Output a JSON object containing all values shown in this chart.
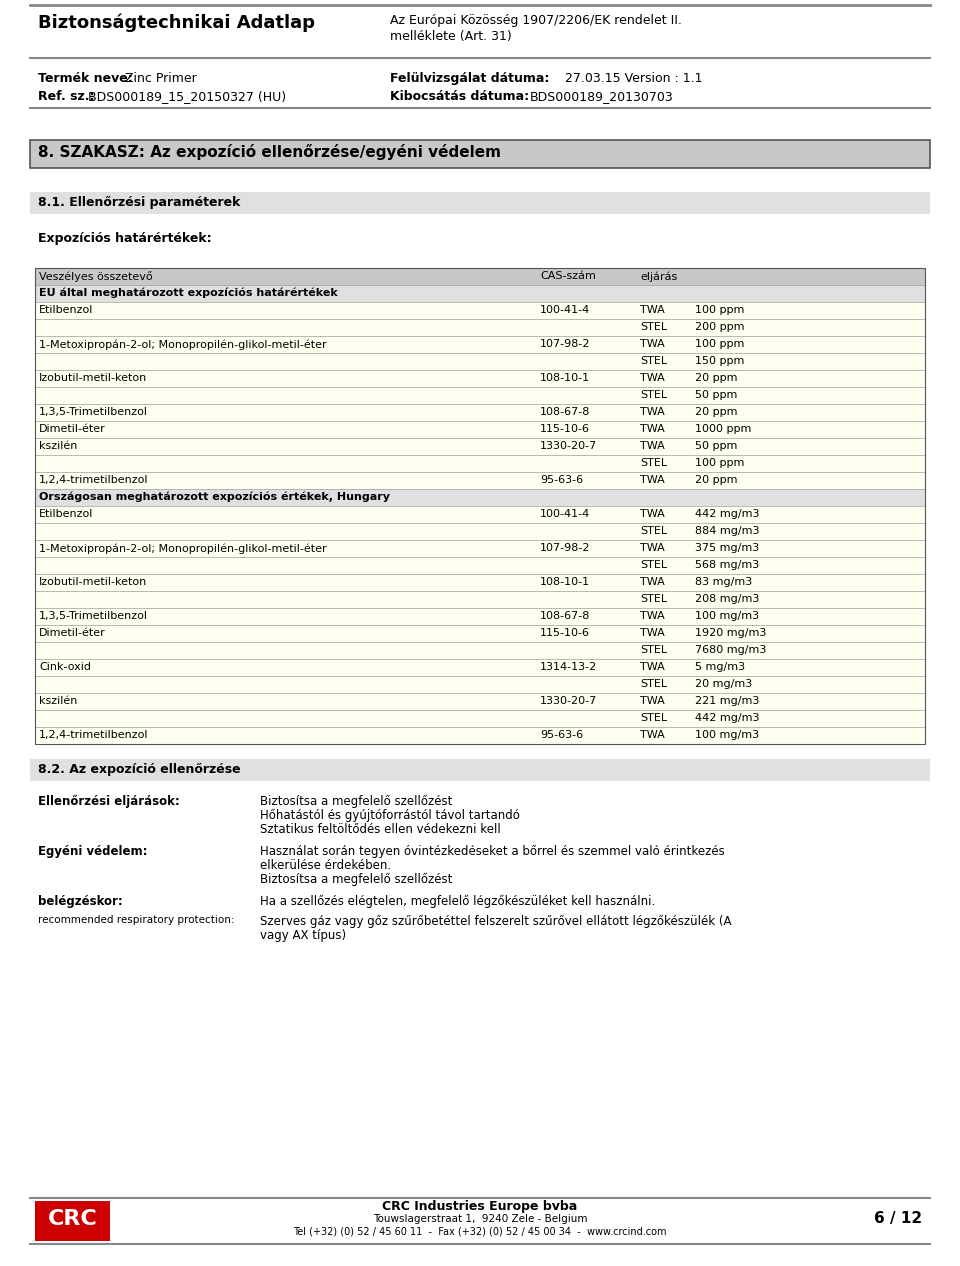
{
  "page_bg": "#ffffff",
  "header_title_left": "Biztonságtechnikai Adatlap",
  "header_right_line1": "Az Európai Közösség 1907/2206/EK rendelet II.",
  "header_right_line2": "melléklete (Art. 31)",
  "product_name_label": "Termék neve:",
  "product_name_value": "Zinc Primer",
  "ref_label": "Ref. sz.:",
  "ref_value": "BDS000189_15_20150327 (HU)",
  "review_label": "Felülvizsgálat dátuma:",
  "review_value": "27.03.15 Version : 1.1",
  "release_label": "Kibocsátás dátuma:",
  "release_value": "BDS000189_20130703",
  "section_title": "8. SZAKASZ: Az expozíció ellenőrzése/egyéni védelem",
  "subsection1": "8.1. Ellenőrzési paraméterek",
  "exposure_title": "Expozíciós határértékek:",
  "table_header": [
    "Veszélyes összetevő",
    "CAS-szám",
    "eljárás",
    ""
  ],
  "eu_section_header": "EU által meghatározott expozíciós határértékek",
  "eu_rows": [
    [
      "Etilbenzol",
      "100-41-4",
      "TWA",
      "100 ppm"
    ],
    [
      "",
      "",
      "STEL",
      "200 ppm"
    ],
    [
      "1-Metoxipropán-2-ol; Monopropilén-glikol-metil-éter",
      "107-98-2",
      "TWA",
      "100 ppm"
    ],
    [
      "",
      "",
      "STEL",
      "150 ppm"
    ],
    [
      "Izobutil-metil-keton",
      "108-10-1",
      "TWA",
      "20 ppm"
    ],
    [
      "",
      "",
      "STEL",
      "50 ppm"
    ],
    [
      "1,3,5-Trimetilbenzol",
      "108-67-8",
      "TWA",
      "20 ppm"
    ],
    [
      "Dimetil-éter",
      "115-10-6",
      "TWA",
      "1000 ppm"
    ],
    [
      "kszilén",
      "1330-20-7",
      "TWA",
      "50 ppm"
    ],
    [
      "",
      "",
      "STEL",
      "100 ppm"
    ],
    [
      "1,2,4-trimetilbenzol",
      "95-63-6",
      "TWA",
      "20 ppm"
    ]
  ],
  "hu_section_header": "Országosan meghatározott expozíciós értékek, Hungary",
  "hu_rows": [
    [
      "Etilbenzol",
      "100-41-4",
      "TWA",
      "442 mg/m3"
    ],
    [
      "",
      "",
      "STEL",
      "884 mg/m3"
    ],
    [
      "1-Metoxipropán-2-ol; Monopropilén-glikol-metil-éter",
      "107-98-2",
      "TWA",
      "375 mg/m3"
    ],
    [
      "",
      "",
      "STEL",
      "568 mg/m3"
    ],
    [
      "Izobutil-metil-keton",
      "108-10-1",
      "TWA",
      "83 mg/m3"
    ],
    [
      "",
      "",
      "STEL",
      "208 mg/m3"
    ],
    [
      "1,3,5-Trimetilbenzol",
      "108-67-8",
      "TWA",
      "100 mg/m3"
    ],
    [
      "Dimetil-éter",
      "115-10-6",
      "TWA",
      "1920 mg/m3"
    ],
    [
      "",
      "",
      "STEL",
      "7680 mg/m3"
    ],
    [
      "Cink-oxid",
      "1314-13-2",
      "TWA",
      "5 mg/m3"
    ],
    [
      "",
      "",
      "STEL",
      "20 mg/m3"
    ],
    [
      "kszilén",
      "1330-20-7",
      "TWA",
      "221 mg/m3"
    ],
    [
      "",
      "",
      "STEL",
      "442 mg/m3"
    ],
    [
      "1,2,4-trimetilbenzol",
      "95-63-6",
      "TWA",
      "100 mg/m3"
    ]
  ],
  "subsection2": "8.2. Az expozíció ellenőrzése",
  "control_label": "Ellenőrzési eljárások:",
  "control_lines": [
    "Biztosítsa a megfelelő szellőzést",
    "Hőhatástól és gyújtóforrástól távol tartandó",
    "Sztatikus feltöltődés ellen védekezni kell"
  ],
  "personal_label": "Egyéni védelem:",
  "personal_lines": [
    "Használat során tegyen óvintézkedéseket a bőrrel és szemmel való érintkezés",
    "elkerülése érdekében.",
    "Biztosítsa a megfelelő szellőzést"
  ],
  "breathing_label": "belégzéskor:",
  "breathing_text": "Ha a szellőzés elégtelen, megfelelő légzőkészüléket kell használni.",
  "resp_label": "recommended respiratory protection:",
  "resp_lines": [
    "Szerves gáz vagy gőz szűrőbetéttel felszerelt szűrővel ellátott légzőkészülék (A",
    "vagy AX típus)"
  ],
  "footer_company": "CRC Industries Europe bvba",
  "footer_address": "Touwslagerstraat 1,  9240 Zele - Belgium",
  "footer_tel": "Tel (+32) (0) 52 / 45 60 11  -  Fax (+32) (0) 52 / 45 00 34  -  www.crcind.com",
  "footer_page": "6 / 12",
  "table_bg": "#fffff0",
  "table_header_bg": "#c8c8c8",
  "table_section_bg": "#e0e0e0",
  "section_box_bg": "#c8c8c8",
  "subsection_bg": "#e0e0e0",
  "line_color": "#888888",
  "border_color": "#555555",
  "table_border_color": "#aaaaaa"
}
